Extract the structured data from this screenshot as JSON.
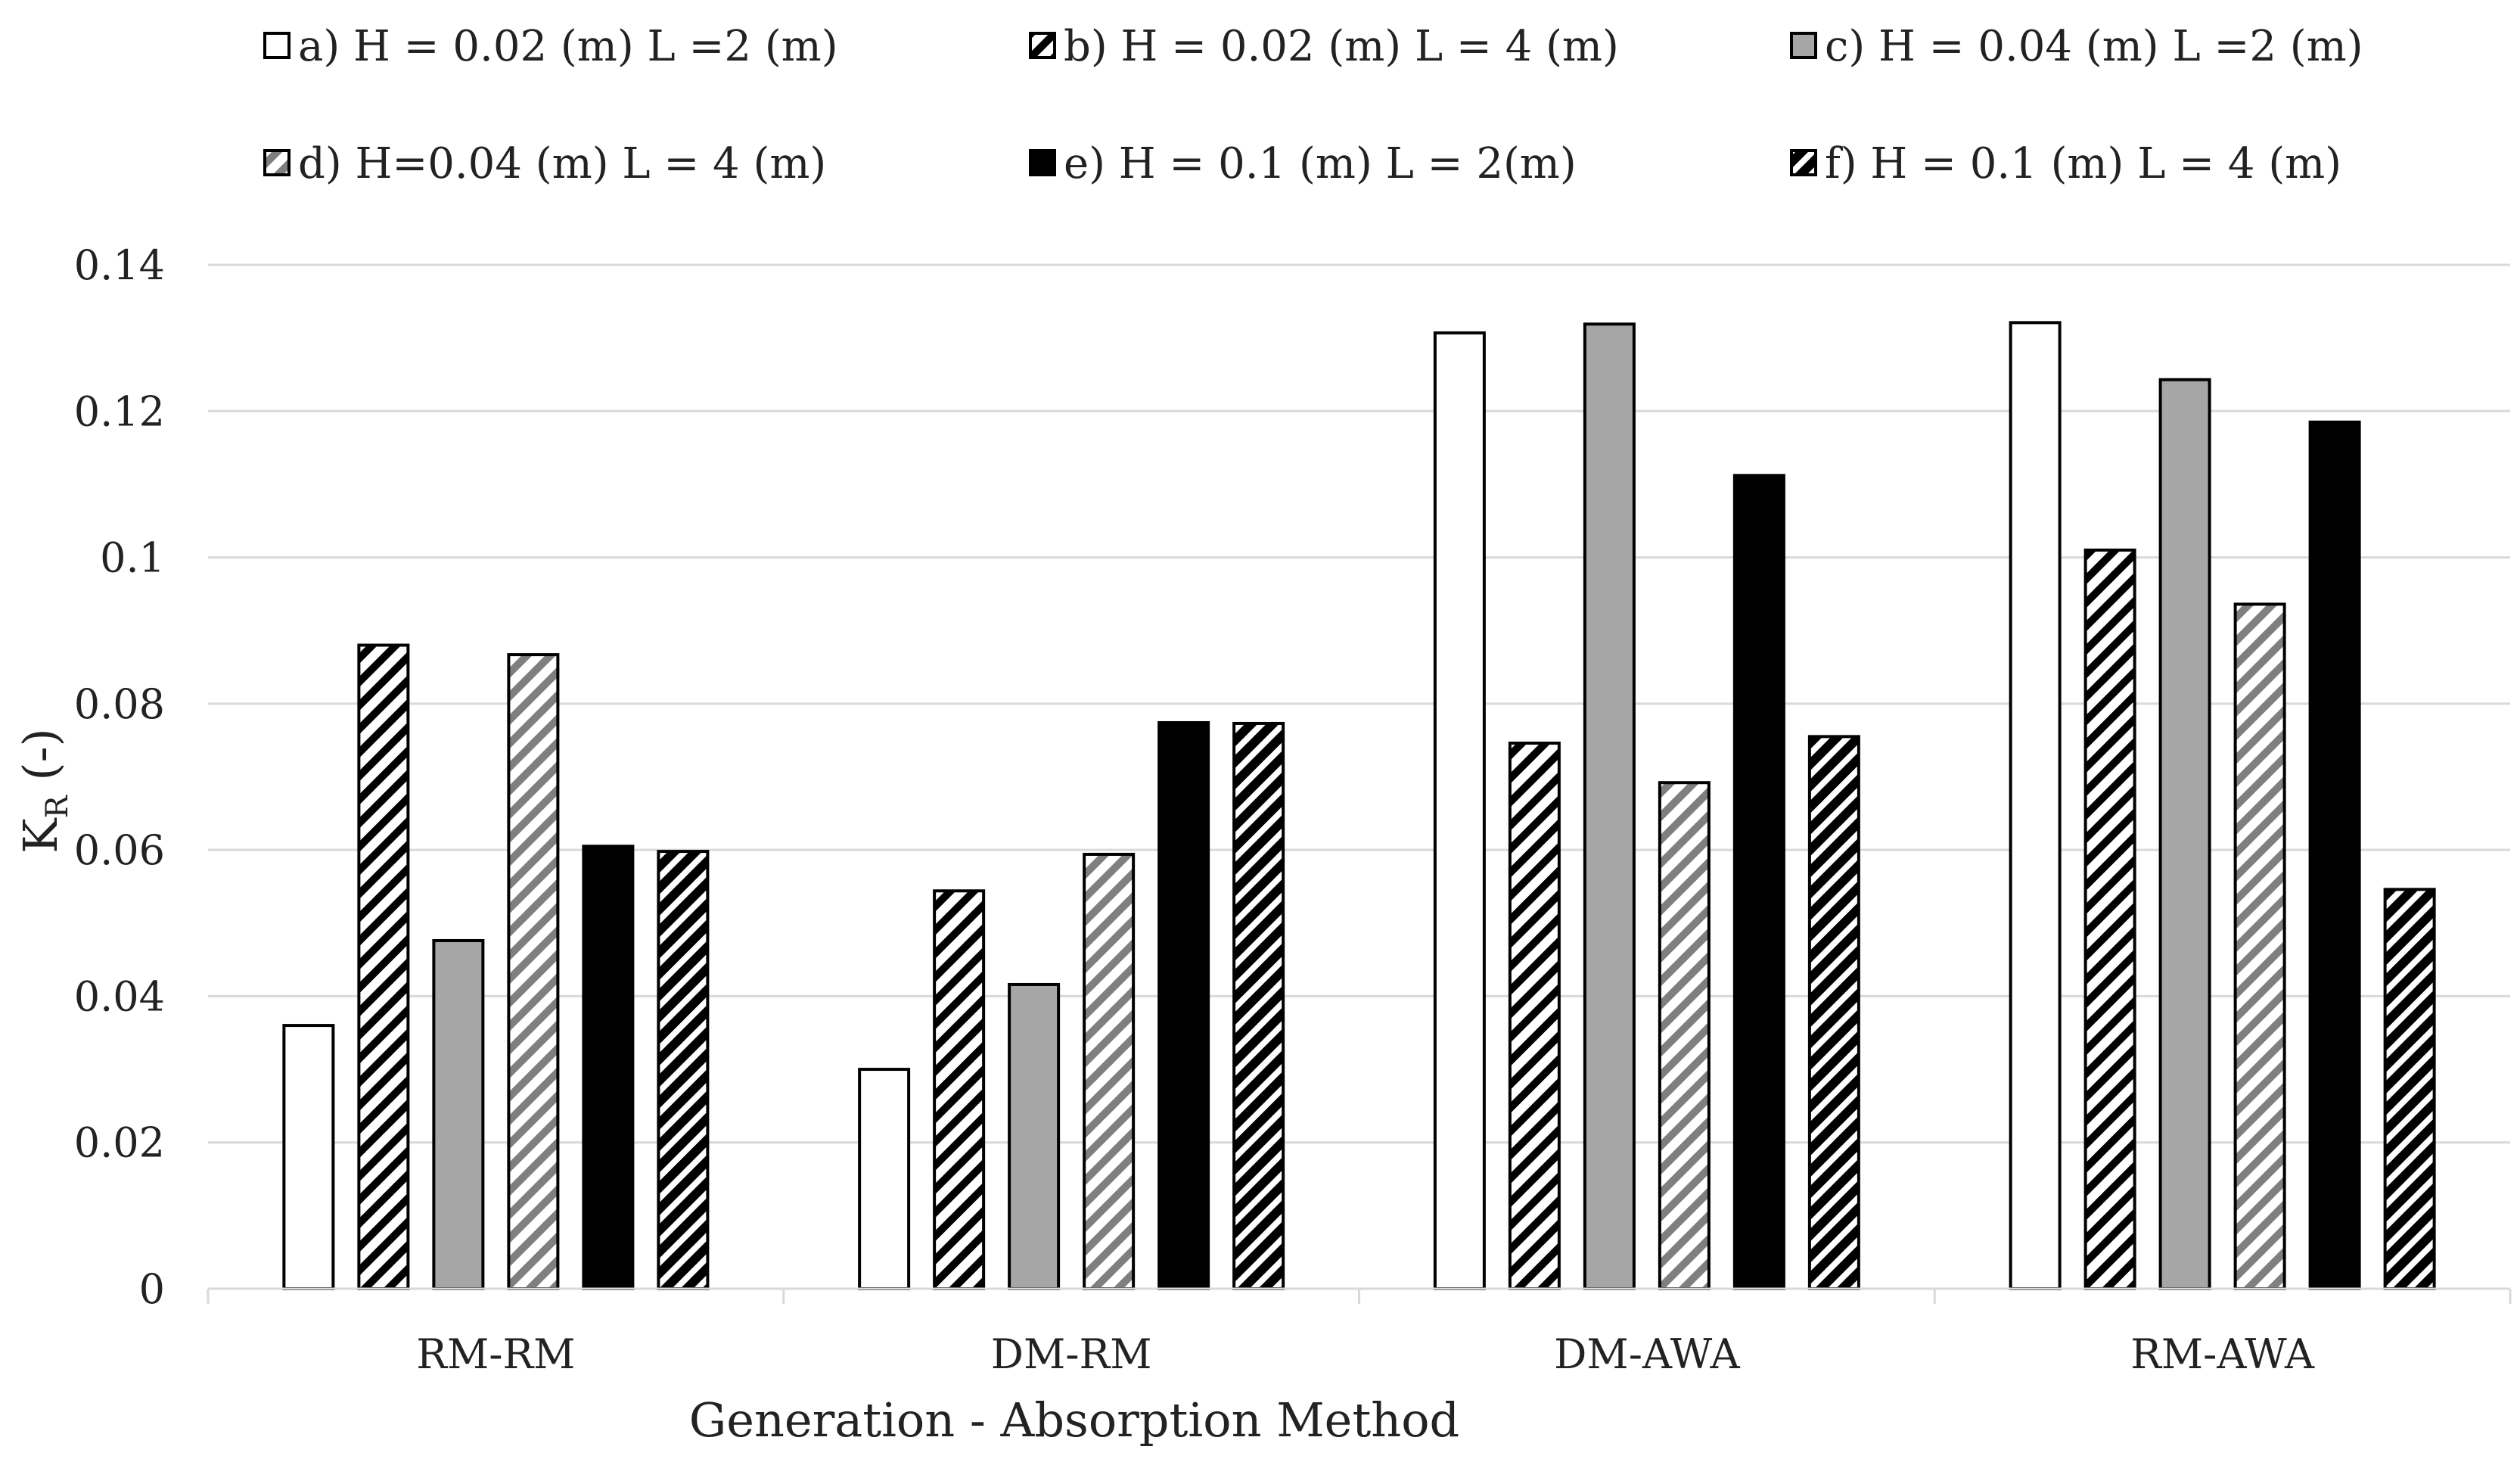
{
  "chart_data": {
    "type": "bar",
    "title": "",
    "xlabel": "Generation - Absorption Method",
    "ylabel_main": "K",
    "ylabel_sub": "R",
    "ylabel_suffix": " (-)",
    "ylim": [
      0,
      0.14
    ],
    "yticks": [
      0,
      0.02,
      0.04,
      0.06,
      0.08,
      0.1,
      0.12,
      0.14
    ],
    "ytick_labels": [
      "0",
      "0.02",
      "0.04",
      "0.06",
      "0.08",
      "0.1",
      "0.12",
      "0.14"
    ],
    "grid": true,
    "legend_position": "top",
    "categories": [
      "RM-RM",
      "DM-RM",
      "DM-AWA",
      "RM-AWA"
    ],
    "series": [
      {
        "name": "a) H = 0.02 (m) L =2 (m)",
        "fill": "white",
        "values": [
          0.036,
          0.03,
          0.1307,
          0.1321
        ]
      },
      {
        "name": "b) H = 0.02 (m) L = 4 (m)",
        "fill": "hatch-black",
        "values": [
          0.088,
          0.0544,
          0.0746,
          0.101
        ]
      },
      {
        "name": "c) H = 0.04 (m) L =2 (m)",
        "fill": "gray",
        "values": [
          0.0476,
          0.0416,
          0.1319,
          0.1243
        ]
      },
      {
        "name": "d) H=0.04 (m) L = 4 (m)",
        "fill": "hatch-gray",
        "values": [
          0.0867,
          0.0594,
          0.0692,
          0.0936
        ]
      },
      {
        "name": "e) H = 0.1 (m) L = 2(m)",
        "fill": "black",
        "values": [
          0.0605,
          0.0774,
          0.1112,
          0.1185
        ]
      },
      {
        "name": "f) H = 0.1 (m) L = 4 (m)",
        "fill": "hatch-dense",
        "values": [
          0.0598,
          0.0773,
          0.0755,
          0.0546
        ]
      }
    ],
    "colors": {
      "white": "#ffffff",
      "gray": "#a6a6a6",
      "black": "#000000",
      "stroke": "#000000",
      "grid": "#d9d9d9",
      "hatch_gray": "#7f7f7f"
    }
  }
}
